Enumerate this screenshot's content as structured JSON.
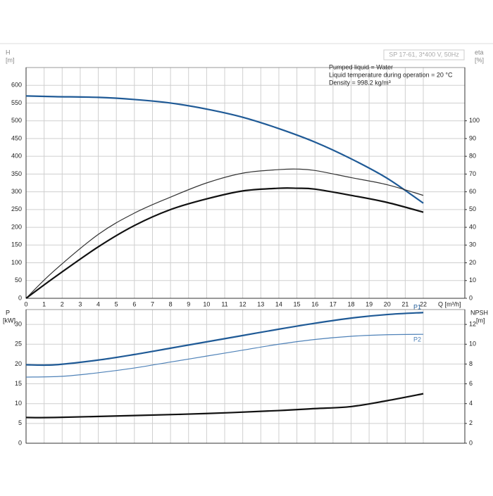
{
  "chart_data": [
    {
      "type": "line",
      "model": "SP 17-61, 3*400 V, 50Hz",
      "notes": [
        "Pumped liquid = Water",
        "Liquid temperature during operation = 20 °C",
        "Density = 998.2 kg/m³"
      ],
      "y_label": "H",
      "y_unit": "[m]",
      "y2_label": "eta",
      "y2_unit": "[%]",
      "x_label": "Q [m³/h]",
      "xlim": [
        0,
        24.3
      ],
      "xticks": [
        0,
        1,
        2,
        3,
        4,
        5,
        6,
        7,
        8,
        9,
        10,
        11,
        12,
        13,
        14,
        15,
        16,
        17,
        18,
        19,
        20,
        21,
        22
      ],
      "ylim": [
        0,
        650
      ],
      "yticks": [
        0,
        50,
        100,
        150,
        200,
        250,
        300,
        350,
        400,
        450,
        500,
        550,
        600
      ],
      "y2lim": [
        0,
        130
      ],
      "y2ticks": [
        0,
        10,
        20,
        30,
        40,
        50,
        60,
        70,
        80,
        90,
        100
      ],
      "grid": true,
      "series": [
        {
          "color": "#1f5a96",
          "x": [
            0,
            1.6,
            4,
            6,
            8,
            10,
            12,
            14,
            16,
            18,
            20,
            22
          ],
          "values": [
            570,
            568,
            566,
            560,
            550,
            533,
            510,
            478,
            440,
            393,
            338,
            268
          ]
        },
        {
          "color": "#333333",
          "axis": "y2",
          "x": [
            0,
            1.5,
            4,
            6,
            8,
            10,
            12,
            14,
            15,
            16,
            18,
            20,
            22
          ],
          "values": [
            0,
            15,
            36,
            48,
            57,
            65,
            70.5,
            72.5,
            72.8,
            72,
            68,
            64,
            58
          ]
        },
        {
          "color": "#111111",
          "axis": "y2",
          "x": [
            0,
            1.6,
            4,
            6,
            8,
            10,
            12,
            14,
            15,
            16,
            18,
            20,
            22
          ],
          "values": [
            0,
            12,
            29,
            41,
            50,
            56,
            60.5,
            62,
            62,
            61.5,
            58,
            54,
            48.5
          ]
        }
      ]
    },
    {
      "type": "line",
      "y_label": "P",
      "y_unit": "[kW]",
      "y2_label": "NPSH",
      "y2_unit": "[m]",
      "xlim": [
        0,
        24.3
      ],
      "ylim": [
        0,
        33.75
      ],
      "yticks": [
        0,
        5,
        10,
        15,
        20,
        25,
        30
      ],
      "y2lim": [
        0,
        13.5
      ],
      "y2ticks": [
        0,
        2,
        4,
        6,
        8,
        10,
        12
      ],
      "grid": true,
      "series": [
        {
          "name": "P1",
          "color": "#1f5a96",
          "x": [
            0,
            1.6,
            4,
            6,
            8,
            10,
            12,
            14,
            16,
            18,
            20,
            22
          ],
          "values": [
            19.8,
            19.8,
            21,
            22.4,
            24,
            25.6,
            27.2,
            28.8,
            30.3,
            31.6,
            32.5,
            33
          ]
        },
        {
          "name": "P2",
          "color": "#4f82b8",
          "x": [
            0,
            2,
            4,
            6,
            8,
            10,
            12,
            14,
            16,
            18,
            20,
            22
          ],
          "values": [
            16.7,
            16.9,
            17.8,
            19,
            20.5,
            22,
            23.5,
            25,
            26.2,
            27,
            27.4,
            27.5
          ]
        },
        {
          "color": "#111111",
          "axis": "y2",
          "x": [
            0,
            1.6,
            6,
            10,
            14,
            16,
            18,
            20,
            22
          ],
          "values": [
            2.6,
            2.6,
            2.8,
            3.0,
            3.3,
            3.5,
            3.7,
            4.3,
            5.0
          ]
        }
      ]
    }
  ]
}
